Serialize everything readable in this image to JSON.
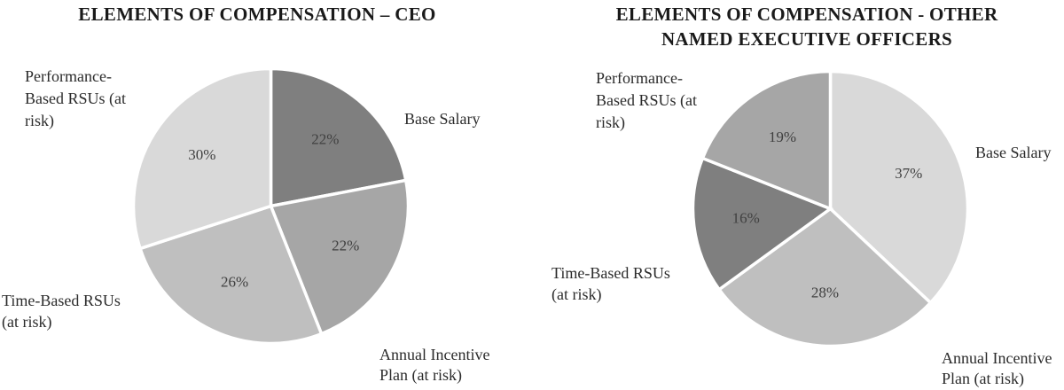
{
  "chart_data": [
    {
      "type": "pie",
      "title": "ELEMENTS OF COMPENSATION – CEO",
      "title_lines": [
        "ELEMENTS OF COMPENSATION – CEO"
      ],
      "start_angle_deg": 0,
      "direction": "clockwise",
      "legend_position": "none",
      "border_color": "#FFFFFF",
      "value_label_color": "#404040",
      "slices": [
        {
          "label": "Base Salary",
          "value": 22,
          "pct_label": "22%",
          "color": "#7F7F7F",
          "label_lines": [
            "Base Salary"
          ]
        },
        {
          "label": "Annual Incentive Plan (at risk)",
          "value": 22,
          "pct_label": "22%",
          "color": "#A6A6A6",
          "label_lines": [
            "Annual Incentive",
            "Plan (at risk)"
          ]
        },
        {
          "label": "Time-Based RSUs (at risk)",
          "value": 26,
          "pct_label": "26%",
          "color": "#BFBFBF",
          "label_lines": [
            "Time-Based RSUs",
            "(at risk)"
          ]
        },
        {
          "label": "Performance-Based RSUs (at risk)",
          "value": 30,
          "pct_label": "30%",
          "color": "#D9D9D9",
          "label_lines": [
            "Performance-",
            "Based RSUs (at",
            "risk)"
          ]
        }
      ]
    },
    {
      "type": "pie",
      "title": "ELEMENTS OF COMPENSATION - OTHER NAMED EXECUTIVE OFFICERS",
      "title_lines": [
        "ELEMENTS OF COMPENSATION - OTHER",
        "NAMED EXECUTIVE OFFICERS"
      ],
      "start_angle_deg": 0,
      "direction": "clockwise",
      "legend_position": "none",
      "border_color": "#FFFFFF",
      "value_label_color": "#404040",
      "slices": [
        {
          "label": "Base Salary",
          "value": 37,
          "pct_label": "37%",
          "color": "#D9D9D9",
          "label_lines": [
            "Base Salary"
          ]
        },
        {
          "label": "Annual Incentive Plan (at risk)",
          "value": 28,
          "pct_label": "28%",
          "color": "#BFBFBF",
          "label_lines": [
            "Annual Incentive",
            "Plan (at risk)"
          ]
        },
        {
          "label": "Time-Based RSUs (at risk)",
          "value": 16,
          "pct_label": "16%",
          "color": "#7F7F7F",
          "label_lines": [
            "Time-Based RSUs",
            "(at risk)"
          ]
        },
        {
          "label": "Performance-Based RSUs (at risk)",
          "value": 19,
          "pct_label": "19%",
          "color": "#A6A6A6",
          "label_lines": [
            "Performance-",
            "Based RSUs (at",
            "risk)"
          ]
        }
      ]
    }
  ]
}
